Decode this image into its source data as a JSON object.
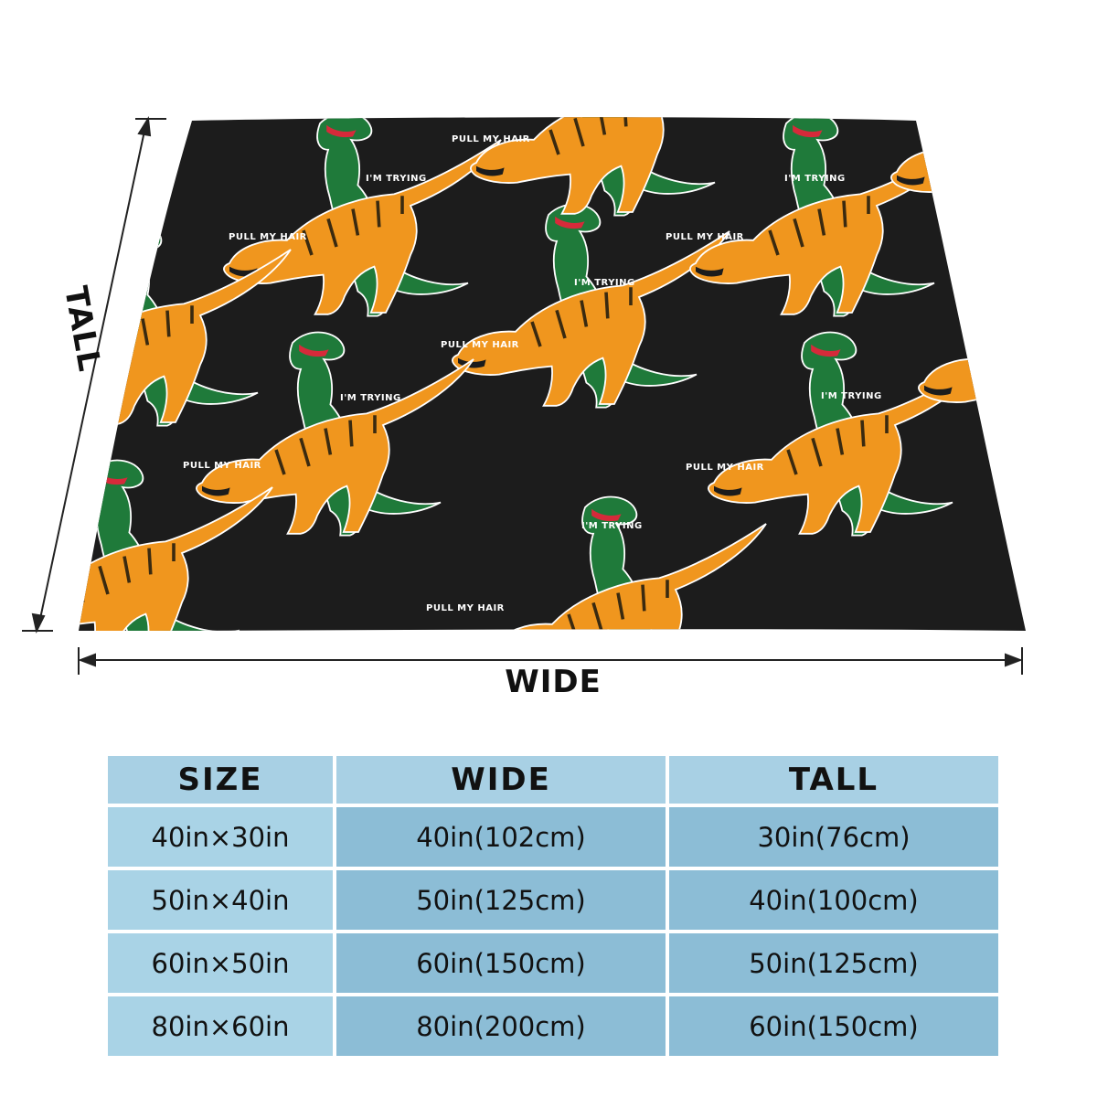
{
  "dimensions": {
    "wide_label": "WIDE",
    "tall_label": "TALL"
  },
  "print": {
    "phrase_top": "PULL MY HAIR",
    "phrase_bottom": "I'M TRYING",
    "colors": {
      "background": "#1c1c1c",
      "orange_dino": "#f0961e",
      "green_dino": "#1f7a3a",
      "outline": "#ffffff"
    }
  },
  "table": {
    "headers": [
      "SIZE",
      "WIDE",
      "TALL"
    ],
    "rows": [
      [
        "40in×30in",
        "40in(102cm)",
        "30in(76cm)"
      ],
      [
        "50in×40in",
        "50in(125cm)",
        "40in(100cm)"
      ],
      [
        "60in×50in",
        "60in(150cm)",
        "50in(125cm)"
      ],
      [
        "80in×60in",
        "80in(200cm)",
        "60in(150cm)"
      ]
    ],
    "colors": {
      "header_bg": "#a8d0e4",
      "cell_bg": "#8cbdd6"
    }
  }
}
